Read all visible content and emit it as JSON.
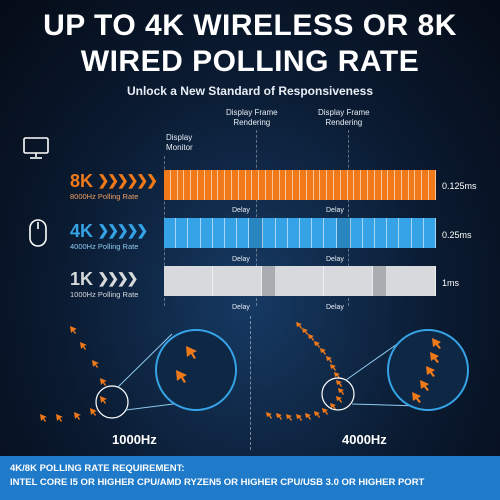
{
  "header": {
    "title_line1": "UP TO 4K WIRELESS OR 8K",
    "title_line2": "WIRED POLLING RATE",
    "subtitle": "Unlock a New Standard of Responsiveness"
  },
  "columns": {
    "display_monitor": [
      "Display",
      "Monitor"
    ],
    "display_frame_1": [
      "Display Frame",
      "Rendering"
    ],
    "display_frame_2": [
      "Display Frame",
      "Rendering"
    ]
  },
  "rows": [
    {
      "big": "8K",
      "label": "8000Hz Polling Rate",
      "rate": "0.125ms",
      "color": "#f07a1a"
    },
    {
      "big": "4K",
      "label": "4000Hz Polling Rate",
      "rate": "0.25ms",
      "color": "#35a3e6"
    },
    {
      "big": "1K",
      "label": "1000Hz Polling Rate",
      "rate": "1ms",
      "color": "#d7d9dc"
    }
  ],
  "delay_label": "Delay",
  "comparisons": [
    {
      "label": "1000Hz"
    },
    {
      "label": "4000Hz"
    }
  ],
  "footer": {
    "line1": "4K/8K POLLING RATE REQUIREMENT:",
    "line2": "INTEL CORE I5 OR HIGHER CPU/AMD RYZEN5 OR HIGHER CPU/USB 3.0 OR HIGHER PORT"
  },
  "colors": {
    "orange": "#f07a1a",
    "blue": "#35a3e6",
    "gray": "#d7d9dc",
    "footer_bg": "#1f7bc9"
  },
  "icons": {
    "monitor": "monitor-icon",
    "mouse": "mouse-icon"
  }
}
